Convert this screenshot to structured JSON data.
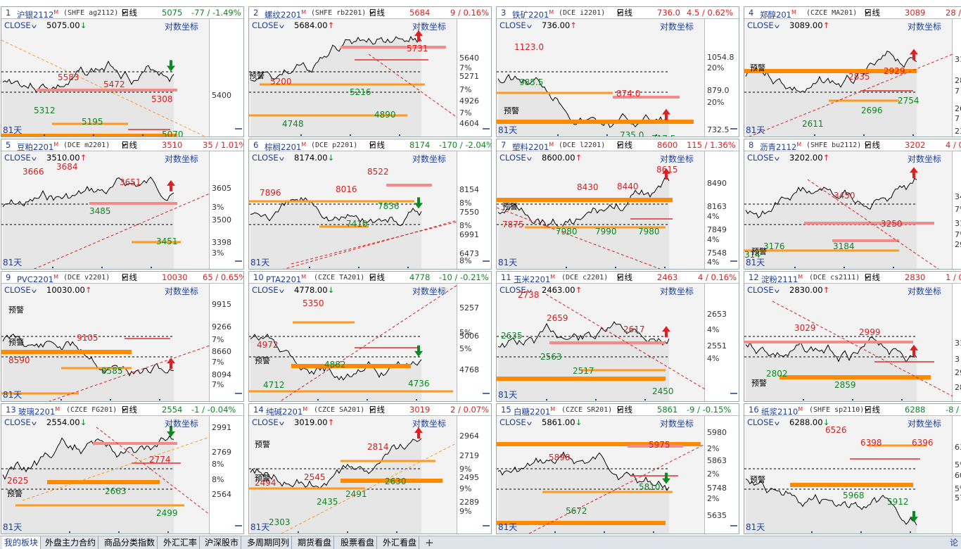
{
  "panels": [
    {
      "num": "1",
      "name": "沪银2112",
      "code": "(SHFE ag2112)",
      "period": "日线",
      "price": "5075",
      "change": "-77 / -1.49%",
      "dir": "down",
      "close_label": "CLOSE",
      "close_price": "5075.00",
      "log_label": "对数坐标",
      "days": "81天",
      "anns": [
        {
          "t": "5583",
          "c": "r"
        },
        {
          "t": "5472",
          "c": "r"
        },
        {
          "t": "5308",
          "c": "r"
        },
        {
          "t": "5312",
          "c": "g"
        },
        {
          "t": "5195",
          "c": "g"
        },
        {
          "t": "5070",
          "c": "g"
        }
      ],
      "warn": [],
      "ticks": [
        "5400"
      ],
      "pct": []
    },
    {
      "num": "2",
      "name": "螺纹2201",
      "code": "(SHFE rb2201)",
      "period": "日线",
      "price": "5684",
      "change": "9 / 0.16%",
      "dir": "up",
      "close_label": "CLOSE",
      "close_price": "5684.00",
      "log_label": "对数坐标",
      "days": "",
      "anns": [
        {
          "t": "5731",
          "c": "r"
        },
        {
          "t": "5200",
          "c": "r"
        },
        {
          "t": "5216",
          "c": "g"
        },
        {
          "t": "4890",
          "c": "g"
        },
        {
          "t": "4748",
          "c": "g"
        }
      ],
      "warn": [
        "预警"
      ],
      "ticks": [
        "5640",
        "5271",
        "4926",
        "4604"
      ],
      "pct": [
        "7%",
        "7%",
        "7%"
      ]
    },
    {
      "num": "3",
      "name": "铁矿2201",
      "code": "(DCE i2201)",
      "period": "日线",
      "price": "736.0",
      "change": "4.5 / 0.62%",
      "dir": "up",
      "close_label": "CLOSE",
      "close_price": "736.00",
      "log_label": "对数坐标",
      "days": "81天",
      "anns": [
        {
          "t": "1123.0",
          "c": "r"
        },
        {
          "t": "874.0",
          "c": "r"
        },
        {
          "t": "985.5",
          "c": "g"
        },
        {
          "t": "735.0",
          "c": "g"
        },
        {
          "t": "717.5",
          "c": "g"
        }
      ],
      "warn": [
        "预警"
      ],
      "ticks": [
        "1054.8",
        "879.0",
        "732.5"
      ],
      "pct": [
        "20%",
        "20%"
      ]
    },
    {
      "num": "4",
      "name": "郑醇201",
      "code": "(CZCE MA201)",
      "period": "日线",
      "price": "3089",
      "change": "28 / 0.9",
      "dir": "up",
      "close_label": "CLOSE",
      "close_price": "3089.00",
      "log_label": "对数坐标",
      "days": "81天",
      "anns": [
        {
          "t": "2929",
          "c": "r"
        },
        {
          "t": "2835",
          "c": "r"
        },
        {
          "t": "2754",
          "c": "g"
        },
        {
          "t": "2696",
          "c": "g"
        },
        {
          "t": "2611",
          "c": "g"
        }
      ],
      "warn": [
        "预警"
      ],
      "ticks": [
        "31",
        "28",
        "26",
        "23"
      ],
      "pct": [
        "7",
        "7"
      ]
    },
    {
      "num": "5",
      "name": "豆粕2201",
      "code": "(DCE m2201)",
      "period": "日线",
      "price": "3510",
      "change": "35 / 1.01%",
      "dir": "up",
      "close_label": "CLOSE",
      "close_price": "3510.00",
      "log_label": "对数坐标",
      "days": "81天",
      "anns": [
        {
          "t": "3666",
          "c": "r"
        },
        {
          "t": "3684",
          "c": "r"
        },
        {
          "t": "3651",
          "c": "r"
        },
        {
          "t": "3485",
          "c": "g"
        },
        {
          "t": "3451",
          "c": "g"
        }
      ],
      "warn": [],
      "ticks": [
        "3605",
        "3500",
        "3398"
      ],
      "pct": [
        "3%",
        "3%"
      ]
    },
    {
      "num": "6",
      "name": "棕榈2201",
      "code": "(DCE p2201)",
      "period": "日线",
      "price": "8174",
      "change": "-170 / -2.04%",
      "dir": "down",
      "close_label": "CLOSE",
      "close_price": "8174.00",
      "log_label": "对数坐标",
      "days": "81天",
      "anns": [
        {
          "t": "8522",
          "c": "r"
        },
        {
          "t": "7896",
          "c": "r"
        },
        {
          "t": "8016",
          "c": "r"
        },
        {
          "t": "7836",
          "c": "g"
        },
        {
          "t": "7410",
          "c": "g"
        }
      ],
      "warn": [],
      "ticks": [
        "8154",
        "7550",
        "6991",
        "6473"
      ],
      "pct": [
        "8%",
        "8%",
        "8%"
      ]
    },
    {
      "num": "7",
      "name": "塑料2201",
      "code": "(DCE l2201)",
      "period": "日线",
      "price": "8600",
      "change": "115 / 1.36%",
      "dir": "up",
      "close_label": "CLOSE",
      "close_price": "8600.00",
      "log_label": "对数坐标",
      "days": "81天",
      "anns": [
        {
          "t": "8615",
          "c": "r"
        },
        {
          "t": "8430",
          "c": "r"
        },
        {
          "t": "8440",
          "c": "r"
        },
        {
          "t": "7875",
          "c": "r"
        },
        {
          "t": "7980",
          "c": "g"
        },
        {
          "t": "7990",
          "c": "g"
        },
        {
          "t": "7980",
          "c": "g"
        }
      ],
      "warn": [
        "预警"
      ],
      "ticks": [
        "8490",
        "8163",
        "7849",
        "7548"
      ],
      "pct": [
        "4%",
        "4%",
        "4%"
      ]
    },
    {
      "num": "8",
      "name": "沥青2112",
      "code": "(SHFE bu2112)",
      "period": "日线",
      "price": "3202",
      "change": "4 / 0.1",
      "dir": "up",
      "close_label": "CLOSE",
      "close_price": "3202.00",
      "log_label": "对数坐标",
      "days": "81天",
      "anns": [
        {
          "t": "3450",
          "c": "r"
        },
        {
          "t": "3250",
          "c": "r"
        },
        {
          "t": "3176",
          "c": "g"
        },
        {
          "t": "3184",
          "c": "g"
        },
        {
          "t": "314",
          "c": "g"
        }
      ],
      "warn": [
        "预警"
      ],
      "ticks": [
        "34",
        "31",
        "29"
      ],
      "pct": [
        "7%",
        "7%"
      ]
    },
    {
      "num": "9",
      "name": "PVC2201",
      "code": "(DCE v2201)",
      "period": "日线",
      "price": "10030",
      "change": "65 / 0.65%",
      "dir": "up",
      "close_label": "CLOSE",
      "close_price": "10030.00",
      "log_label": "对数坐标",
      "days": "81天",
      "anns": [
        {
          "t": "9105",
          "c": "r"
        },
        {
          "t": "8590",
          "c": "r"
        },
        {
          "t": "8585",
          "c": "g"
        }
      ],
      "warn": [
        "预警",
        "预警"
      ],
      "ticks": [
        "9915",
        "9266",
        "8660",
        "8094"
      ],
      "pct": [
        "7%",
        "7%",
        "7%"
      ]
    },
    {
      "num": "10",
      "name": "PTA2201",
      "code": "(CZCE TA201)",
      "period": "日线",
      "price": "4778",
      "change": "-10 / -0.21%",
      "dir": "down",
      "close_label": "CLOSE",
      "close_price": "4778.00",
      "log_label": "对数坐标",
      "days": "",
      "anns": [
        {
          "t": "5350",
          "c": "r"
        },
        {
          "t": "4972",
          "c": "r"
        },
        {
          "t": "4882",
          "c": "g"
        },
        {
          "t": "4712",
          "c": "g"
        },
        {
          "t": "4736",
          "c": "g"
        }
      ],
      "warn": [
        "预警"
      ],
      "ticks": [
        "5257",
        "5006",
        "4768"
      ],
      "pct": [
        "5%",
        "5%"
      ]
    },
    {
      "num": "11",
      "name": "玉米2201",
      "code": "(DCE c2201)",
      "period": "日线",
      "price": "2463",
      "change": "4 / 0.16%",
      "dir": "up",
      "close_label": "CLOSE",
      "close_price": "2463.00",
      "log_label": "对数坐标",
      "days": "81天",
      "anns": [
        {
          "t": "2738",
          "c": "r"
        },
        {
          "t": "2659",
          "c": "r"
        },
        {
          "t": "2617",
          "c": "r"
        },
        {
          "t": "2635",
          "c": "g"
        },
        {
          "t": "2563",
          "c": "g"
        },
        {
          "t": "2517",
          "c": "g"
        },
        {
          "t": "2450",
          "c": "g"
        }
      ],
      "warn": [],
      "ticks": [
        "2653",
        "2551"
      ],
      "pct": [
        "4%",
        "4%"
      ]
    },
    {
      "num": "12",
      "name": "淀粉2111",
      "code": "(DCE cs2111)",
      "period": "日线",
      "price": "2830",
      "change": "1 / 0.04",
      "dir": "up",
      "close_label": "CLOSE",
      "close_price": "2830.00",
      "log_label": "对数坐标",
      "days": "",
      "anns": [
        {
          "t": "3029",
          "c": "r"
        },
        {
          "t": "2999",
          "c": "r"
        },
        {
          "t": "2802",
          "c": "g"
        },
        {
          "t": "2859",
          "c": "g"
        }
      ],
      "warn": [
        "预警"
      ],
      "ticks": [
        "31",
        "29",
        "28"
      ],
      "pct": [
        "3"
      ]
    },
    {
      "num": "13",
      "name": "玻璃2201",
      "code": "(CZCE FG201)",
      "period": "日线",
      "price": "2554",
      "change": "-1 / -0.04%",
      "dir": "down",
      "close_label": "CLOSE",
      "close_price": "2554.00",
      "log_label": "对数坐标",
      "days": "81天",
      "anns": [
        {
          "t": "2774",
          "c": "r"
        },
        {
          "t": "2625",
          "c": "r"
        },
        {
          "t": "2663",
          "c": "g"
        },
        {
          "t": "2499",
          "c": "g"
        }
      ],
      "warn": [
        "预警"
      ],
      "ticks": [
        "2991",
        "2769",
        "2564"
      ],
      "pct": [
        "8%",
        "8%"
      ]
    },
    {
      "num": "14",
      "name": "纯碱2201",
      "code": "(CZCE SA201)",
      "period": "日线",
      "price": "3019",
      "change": "2 / 0.07%",
      "dir": "up",
      "close_label": "CLOSE",
      "close_price": "3019.00",
      "log_label": "对数坐标",
      "days": "81天",
      "anns": [
        {
          "t": "2814",
          "c": "r"
        },
        {
          "t": "2494",
          "c": "r"
        },
        {
          "t": "2545",
          "c": "r"
        },
        {
          "t": "2630",
          "c": "g"
        },
        {
          "t": "2435",
          "c": "g"
        },
        {
          "t": "2491",
          "c": "g"
        },
        {
          "t": "2303",
          "c": "g"
        }
      ],
      "warn": [
        "预警",
        "预警"
      ],
      "ticks": [
        "2964",
        "2719",
        "2495",
        "2289"
      ],
      "pct": [
        "9%",
        "9%",
        "9%"
      ]
    },
    {
      "num": "15",
      "name": "白糖2201",
      "code": "(CZCE SR201)",
      "period": "日线",
      "price": "5861",
      "change": "-9 / -0.15%",
      "dir": "down",
      "close_label": "CLOSE",
      "close_price": "5861.00",
      "log_label": "对数坐标",
      "days": "81天",
      "anns": [
        {
          "t": "5975",
          "c": "r"
        },
        {
          "t": "5890",
          "c": "r"
        },
        {
          "t": "5810",
          "c": "g"
        },
        {
          "t": "5672",
          "c": "g"
        }
      ],
      "warn": [],
      "ticks": [
        "5980",
        "5863",
        "5748",
        "5635"
      ],
      "pct": [
        "2%",
        "2%",
        "2%"
      ]
    },
    {
      "num": "16",
      "name": "纸浆2110",
      "code": "(SHFE sp2110)",
      "period": "日线",
      "price": "6288",
      "change": "-8 / -0",
      "dir": "down",
      "close_label": "CLOSE",
      "close_price": "6288.00",
      "log_label": "对数坐标",
      "days": "81天",
      "anns": [
        {
          "t": "6526",
          "c": "r"
        },
        {
          "t": "6398",
          "c": "r"
        },
        {
          "t": "6396",
          "c": "r"
        },
        {
          "t": "5968",
          "c": "g"
        },
        {
          "t": "5912",
          "c": "g"
        }
      ],
      "warn": [
        "预警"
      ],
      "ticks": [
        "63",
        "60",
        "57"
      ],
      "pct": [
        "5%",
        "5%"
      ]
    }
  ],
  "tabs": [
    "我的板块",
    "外盘主力合约",
    "商品分类指数",
    "外汇汇率",
    "沪深股市",
    "多周期同列",
    "期货看盘",
    "股票看盘",
    "外汇看盘"
  ],
  "add_tab": "+",
  "corner_btn": "论",
  "colors": {
    "up": "#e02020",
    "down": "#0a8a20",
    "header": "#1a3fa0",
    "orange": "#ff8a00",
    "pink": "#f47a7a"
  }
}
